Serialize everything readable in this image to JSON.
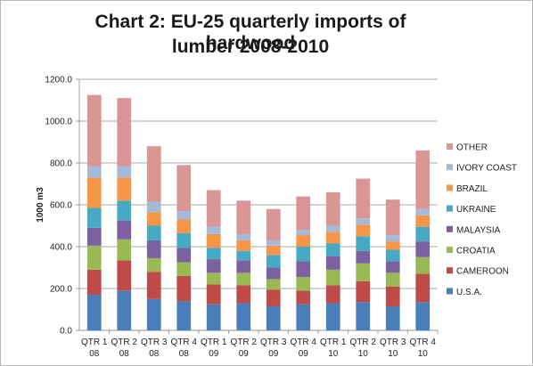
{
  "title_line1": "Chart 2: EU-25 quarterly imports of hardwood",
  "title_line2": "lumber 2008-2010",
  "chart_data": {
    "type": "bar",
    "stacked": true,
    "title": "Chart 2: EU-25 quarterly imports of hardwood lumber 2008-2010",
    "ylabel": "1000 m3",
    "xlabel": "",
    "ylim": [
      0,
      1200
    ],
    "yticks": [
      "0.0",
      "200.0",
      "400.0",
      "600.0",
      "800.0",
      "1000.0",
      "1200.0"
    ],
    "ytick_values": [
      0,
      200,
      400,
      600,
      800,
      1000,
      1200
    ],
    "grid": true,
    "legend_position": "right",
    "categories": [
      [
        "QTR 1",
        "08"
      ],
      [
        "QTR 2",
        "08"
      ],
      [
        "QTR 3",
        "08"
      ],
      [
        "QTR 4",
        "08"
      ],
      [
        "QTR 1",
        "09"
      ],
      [
        "QTR 2",
        "09"
      ],
      [
        "QTR 3",
        "09"
      ],
      [
        "QTR 4",
        "09"
      ],
      [
        "QTR 1",
        "10"
      ],
      [
        "QTR 2",
        "10"
      ],
      [
        "QTR 3",
        "10"
      ],
      [
        "QTR 4",
        "10"
      ]
    ],
    "series": [
      {
        "name": "U.S.A.",
        "color": "#4a7ebb",
        "values": [
          170,
          190,
          150,
          140,
          125,
          130,
          115,
          125,
          130,
          135,
          115,
          135
        ]
      },
      {
        "name": "CAMEROON",
        "color": "#be4b48",
        "values": [
          120,
          145,
          130,
          120,
          95,
          85,
          80,
          65,
          85,
          100,
          95,
          135
        ]
      },
      {
        "name": "CROATIA",
        "color": "#98b954",
        "values": [
          115,
          100,
          65,
          65,
          55,
          60,
          50,
          65,
          75,
          85,
          65,
          80
        ]
      },
      {
        "name": "MALAYSIA",
        "color": "#7d60a0",
        "values": [
          85,
          90,
          85,
          70,
          65,
          60,
          55,
          75,
          65,
          60,
          55,
          75
        ]
      },
      {
        "name": "UKRAINE",
        "color": "#46aac5",
        "values": [
          95,
          95,
          70,
          70,
          55,
          45,
          60,
          70,
          60,
          70,
          55,
          70
        ]
      },
      {
        "name": "BRAZIL",
        "color": "#f79646",
        "values": [
          145,
          110,
          65,
          65,
          65,
          50,
          45,
          55,
          55,
          55,
          40,
          55
        ]
      },
      {
        "name": "IVORY COAST",
        "color": "#a5b9d9",
        "values": [
          55,
          55,
          50,
          40,
          35,
          30,
          25,
          25,
          30,
          30,
          30,
          30
        ]
      },
      {
        "name": "OTHER",
        "color": "#d99694",
        "values": [
          340,
          325,
          265,
          220,
          175,
          160,
          150,
          160,
          160,
          190,
          170,
          280
        ]
      }
    ],
    "legend_order": [
      "OTHER",
      "IVORY COAST",
      "BRAZIL",
      "UKRAINE",
      "MALAYSIA",
      "CROATIA",
      "CAMEROON",
      "U.S.A."
    ]
  }
}
